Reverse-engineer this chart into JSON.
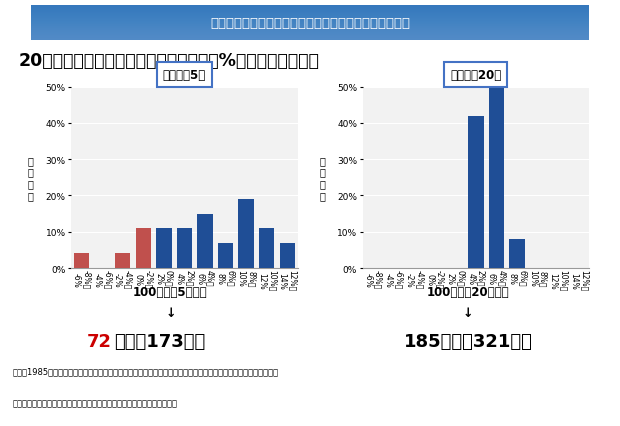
{
  "title_banner": "国内外の株式・債券に分散投資した場合の収益率の分布",
  "subtitle": "20年の保有期間では、投資収益率２〜８%（年率）に収斂。",
  "bg_color": "#FFFFFF",
  "banner_bg_top": "#6B9FD4",
  "banner_bg_bottom": "#2E6BB0",
  "banner_text_color": "#FFFFFF",
  "chart1_title": "保有期間5年",
  "chart1_categories": [
    "-8%〜\n-6%",
    "-6%〜\n-4%",
    "-4%〜\n-2%",
    "-2%〜\n0%",
    "0%〜\n2%",
    "2%〜\n4%",
    "4%〜\n6%",
    "6%〜\n8%",
    "8%〜\n10%",
    "10%〜\n12%",
    "12%〜\n14%"
  ],
  "chart1_values": [
    4,
    0,
    4,
    11,
    11,
    11,
    15,
    7,
    19,
    11,
    7
  ],
  "chart1_colors": [
    "#C0504D",
    "#C0504D",
    "#C0504D",
    "#C0504D",
    "#1F4E96",
    "#1F4E96",
    "#1F4E96",
    "#1F4E96",
    "#1F4E96",
    "#1F4E96",
    "#1F4E96"
  ],
  "chart1_ylabel": "出\n現\n頻\n度",
  "chart1_ylim": [
    0,
    50
  ],
  "chart1_yticks": [
    0,
    10,
    20,
    30,
    40,
    50
  ],
  "chart2_title": "保有期間20年",
  "chart2_categories": [
    "-8%〜\n-6%",
    "-6%〜\n-4%",
    "-4%〜\n-2%",
    "-2%〜\n0%",
    "0%〜\n2%",
    "2%〜\n4%",
    "4%〜\n6%",
    "6%〜\n8%",
    "8%〜\n10%",
    "10%〜\n12%",
    "12%〜\n14%"
  ],
  "chart2_values": [
    0,
    0,
    0,
    0,
    0,
    42,
    50,
    8,
    0,
    0,
    0
  ],
  "chart2_colors": [
    "#1F4E96",
    "#1F4E96",
    "#1F4E96",
    "#1F4E96",
    "#1F4E96",
    "#1F4E96",
    "#1F4E96",
    "#1F4E96",
    "#1F4E96",
    "#1F4E96",
    "#1F4E96"
  ],
  "chart2_ylabel": "出\n現\n頻\n度",
  "chart2_ylim": [
    0,
    50
  ],
  "chart2_yticks": [
    0,
    10,
    20,
    30,
    40,
    50
  ],
  "box1_line1": "100万円が5年後に",
  "box1_line2": "↓",
  "box1_line3_red": "72",
  "box1_line3_black": "万円〜173万円",
  "box1_bg": "#F6C96B",
  "box2_line1": "100万円が20年後に",
  "box2_line2": "↓",
  "box2_line3": "185万円〜321万円",
  "box2_bg": "#F6C96B",
  "footnote_line1": "（注）1985年以降の各年に、毎月同額ずつ国内外の株式・債券の買付けを行ったもの。各年の買付け後、保有期間",
  "footnote_line2": "　　が経過した時点での時価をもとに運用結果及び年率を算出している。"
}
